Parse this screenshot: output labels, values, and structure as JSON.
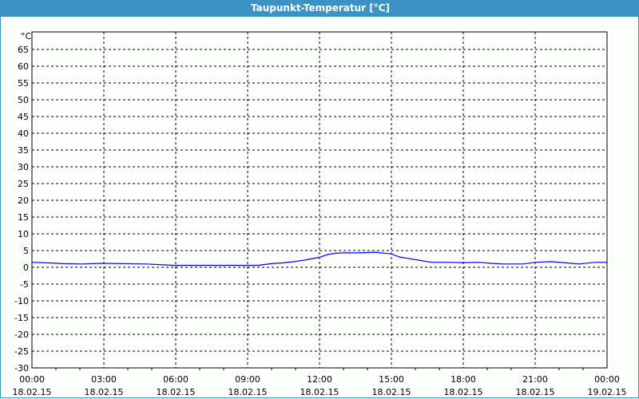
{
  "window": {
    "title": "Taupunkt-Temperatur [°C]",
    "title_bar_color": "#3c92c4"
  },
  "chart_data": {
    "type": "line",
    "title": "Taupunkt-Temperatur [°C]",
    "ylabel": "°C",
    "ylim": [
      -30,
      70
    ],
    "yticks": [
      65,
      60,
      55,
      50,
      45,
      40,
      35,
      30,
      25,
      20,
      15,
      10,
      5,
      0,
      -5,
      -10,
      -15,
      -20,
      -25,
      -30
    ],
    "xlim_hours": [
      0,
      24
    ],
    "xticks": [
      {
        "time": "00:00",
        "date": "18.02.15"
      },
      {
        "time": "03:00",
        "date": "18.02.15"
      },
      {
        "time": "06:00",
        "date": "18.02.15"
      },
      {
        "time": "09:00",
        "date": "18.02.15"
      },
      {
        "time": "12:00",
        "date": "18.02.15"
      },
      {
        "time": "15:00",
        "date": "18.02.15"
      },
      {
        "time": "18:00",
        "date": "18.02.15"
      },
      {
        "time": "21:00",
        "date": "18.02.15"
      },
      {
        "time": "00:00",
        "date": "19.02.15"
      }
    ],
    "grid": true,
    "line_color": "#0000ff",
    "series": [
      {
        "x": [
          "00:00",
          "00:46",
          "01:16",
          "02:06",
          "02:56",
          "04:46",
          "05:56",
          "09:26",
          "10:00",
          "10:26",
          "10:56",
          "11:20",
          "12:00",
          "12:20",
          "12:40",
          "13:00",
          "13:40",
          "14:20",
          "15:00",
          "15:20",
          "15:40",
          "16:20",
          "16:40",
          "17:20",
          "18:00",
          "18:40",
          "19:10",
          "19:40",
          "20:30",
          "21:00",
          "21:40",
          "22:20",
          "22:50",
          "23:30"
        ],
        "y": [
          1.5,
          1.3,
          1.1,
          1.0,
          1.2,
          1.0,
          0.6,
          0.6,
          1.1,
          1.3,
          1.7,
          2.1,
          3.0,
          3.8,
          4.2,
          4.3,
          4.3,
          4.5,
          4.0,
          3.1,
          2.7,
          1.9,
          1.5,
          1.5,
          1.4,
          1.5,
          1.2,
          1.0,
          1.0,
          1.5,
          1.7,
          1.3,
          1.0,
          1.5
        ]
      }
    ]
  }
}
